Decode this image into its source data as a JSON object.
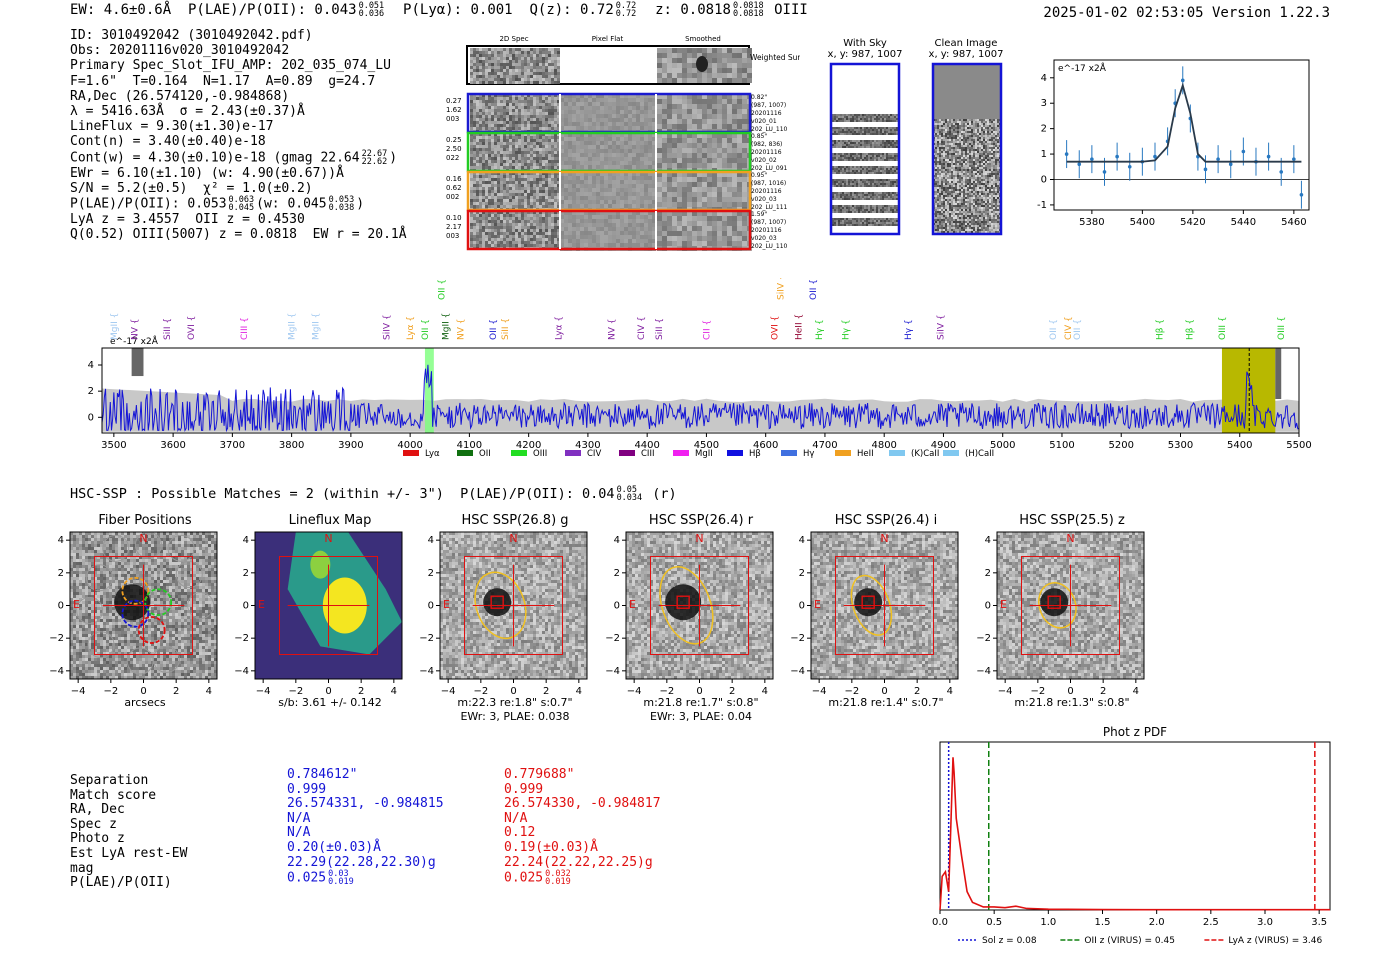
{
  "header": {
    "line": "EW: 4.6±0.6Å  P(LAE)/P(OII): 0.043",
    "pl_hi": "0.051",
    "pl_lo": "0.036",
    "plya": "  P(Lyα): 0.001  Q(z): 0.72",
    "qz_hi": "0.72",
    "qz_lo": "0.72",
    "z_label": "  z: 0.0818",
    "z_hi": "0.0818",
    "z_lo": "0.0818",
    "line_id": " OIII",
    "timestamp": "2025-01-02 02:53:05  Version 1.22.3"
  },
  "summary": {
    "id": "ID: 3010492042 (3010492042.pdf)",
    "obs": "Obs: 20201116v020_3010492042",
    "primary": "Primary Spec_Slot_IFU_AMP: 202_035_074_LU",
    "params": "F=1.6\"  T=0.164  N=1.17  A=0.89  g=24.7",
    "radec": "RA,Dec (26.574120,-0.984868)",
    "lambda": "λ = 5416.63Å  σ = 2.43(±0.37)Å",
    "lineflux": "LineFlux = 9.30(±1.30)e-17",
    "contn": "Cont(n) = 3.40(±0.40)e-18",
    "contw": "Cont(w) = 4.30(±0.10)e-18 (gmag 22.64",
    "gmag_hi": "22.67",
    "gmag_lo": "22.62",
    "ewr": "EWr = 6.10(±1.10) (w: 4.90(±0.67))Å",
    "sn": "S/N = 5.2(±0.5)  χ² = 1.0(±0.2)",
    "plae": "P(LAE)/P(OII): 0.053",
    "plae_hi": "0.063",
    "plae_lo": "0.045",
    "plae_w": "(w: 0.045",
    "plae_w_hi": "0.053",
    "plae_w_lo": "0.038",
    "lya": "LyA z = 3.4557  OII z = 0.4530",
    "q": "Q(0.52) OIII(5007) z = 0.0818  EW r = 20.1Å"
  },
  "cutouts": {
    "col_labels": [
      "2D Spec",
      "Pixel Flat",
      "Smoothed"
    ],
    "weighted": "Weighted Sum",
    "rows": [
      {
        "left": [
          "0.27",
          "1.62",
          "003"
        ],
        "right": [
          "0.82\"",
          "(987, 1007)",
          "20201116",
          "v020_01",
          "202_LU_110"
        ],
        "color": "#1a1ad0"
      },
      {
        "left": [
          "0.25",
          "2.50",
          "022"
        ],
        "right": [
          "0.85\"",
          "(982, 836)",
          "20201116",
          "v020_02",
          "202_LU_091"
        ],
        "color": "#22cc22"
      },
      {
        "left": [
          "0.16",
          "0.62",
          "002"
        ],
        "right": [
          "0.95\"",
          "(987, 1016)",
          "20201116",
          "v020_03",
          "202_LU_111"
        ],
        "color": "#f0a020"
      },
      {
        "left": [
          "0.10",
          "2.17",
          "003"
        ],
        "right": [
          "1.59\"",
          "(987, 1007)",
          "20201116",
          "v020_03",
          "202_LU_110"
        ],
        "color": "#e01010"
      }
    ],
    "with_sky": "With Sky",
    "with_sky_xy": "x, y: 987, 1007",
    "clean": "Clean Image",
    "clean_xy": "x, y: 987, 1007"
  },
  "line_labels": [
    {
      "name": "MgII",
      "w": 3500,
      "color": "#a0c8f0"
    },
    {
      "name": "NV",
      "w": 3535,
      "color": "#8020a0"
    },
    {
      "name": "SiII",
      "w": 3590,
      "color": "#8020a0"
    },
    {
      "name": "OVI",
      "w": 3630,
      "color": "#8020a0"
    },
    {
      "name": "CIII",
      "w": 3720,
      "color": "#e020e0"
    },
    {
      "name": "MgII",
      "w": 3800,
      "color": "#a0c8f0"
    },
    {
      "name": "MgII",
      "w": 3840,
      "color": "#a0c8f0"
    },
    {
      "name": "SiIV",
      "w": 3960,
      "color": "#8020a0"
    },
    {
      "name": "Lyα",
      "w": 4000,
      "color": "#f0a020"
    },
    {
      "name": "OII",
      "w": 4025,
      "color": "#22cc22"
    },
    {
      "name": "MgII",
      "w": 4060,
      "color": "#106010"
    },
    {
      "name": "NV",
      "w": 4085,
      "color": "#f0a020"
    },
    {
      "name": "OII",
      "w": 4140,
      "color": "#1a1ad0"
    },
    {
      "name": "SiII",
      "w": 4160,
      "color": "#f0a020"
    },
    {
      "name": "Lyα",
      "w": 4250,
      "color": "#8020a0"
    },
    {
      "name": "NV",
      "w": 4340,
      "color": "#8020a0"
    },
    {
      "name": "CIV",
      "w": 4390,
      "color": "#8020a0"
    },
    {
      "name": "SiII",
      "w": 4420,
      "color": "#8020a0"
    },
    {
      "name": "CII",
      "w": 4500,
      "color": "#e020e0"
    },
    {
      "name": "OVI",
      "w": 4615,
      "color": "#e01010"
    },
    {
      "name": "HeII",
      "w": 4655,
      "color": "#900030"
    },
    {
      "name": "Hγ",
      "w": 4690,
      "color": "#22cc22"
    },
    {
      "name": "Hγ",
      "w": 4735,
      "color": "#22cc22"
    },
    {
      "name": "Hγ",
      "w": 4840,
      "color": "#1a1ad0"
    },
    {
      "name": "SiIV",
      "w": 4895,
      "color": "#8020a0"
    },
    {
      "name": "OII",
      "w": 5085,
      "color": "#a0c8f0"
    },
    {
      "name": "CIV",
      "w": 5110,
      "color": "#f0a020"
    },
    {
      "name": "OII",
      "w": 5125,
      "color": "#a0c8f0"
    },
    {
      "name": "Hβ",
      "w": 5265,
      "color": "#22cc22"
    },
    {
      "name": "Hβ",
      "w": 5315,
      "color": "#22cc22"
    },
    {
      "name": "OIII",
      "w": 5370,
      "color": "#22cc22"
    },
    {
      "name": "OIII",
      "w": 5470,
      "color": "#22cc22"
    }
  ],
  "upper_labels": [
    {
      "name": "OII",
      "w": 4053,
      "color": "#22cc22"
    },
    {
      "name": "SiIV",
      "w": 4625,
      "color": "#f0a020"
    },
    {
      "name": "OII",
      "w": 4680,
      "color": "#1a1ad0"
    }
  ],
  "legend": [
    {
      "name": "Lyα",
      "color": "#e01010"
    },
    {
      "name": "OII",
      "color": "#107010"
    },
    {
      "name": "OIII",
      "color": "#22dd22"
    },
    {
      "name": "CIV",
      "color": "#8030c0"
    },
    {
      "name": "CIII",
      "color": "#800080"
    },
    {
      "name": "MgII",
      "color": "#f020f0"
    },
    {
      "name": "Hβ",
      "color": "#1010e0"
    },
    {
      "name": "Hγ",
      "color": "#4070e0"
    },
    {
      "name": "HeII",
      "color": "#f0a020"
    },
    {
      "name": "(K)CaII",
      "color": "#80c8f0"
    },
    {
      "name": "(H)CaII",
      "color": "#80c8f0"
    }
  ],
  "hsc": {
    "title": "HSC-SSP : Possible Matches = 2 (within +/- 3\")  P(LAE)/P(OII): 0.04",
    "hi": "0.05",
    "lo": "0.034",
    "tail": " (r)"
  },
  "thumbs": [
    {
      "title": "Fiber Positions",
      "cap1": "arcsecs",
      "cap2": ""
    },
    {
      "title": "Lineflux Map",
      "cap1": "s/b: 3.61 +/- 0.142",
      "cap2": ""
    },
    {
      "title": "HSC SSP(26.8) g",
      "cap1": "m:22.3  re:1.8\"  s:0.7\"",
      "cap2": "EWr: 3, PLAE: 0.038"
    },
    {
      "title": "HSC SSP(26.4) r",
      "cap1": "m:21.8  re:1.7\"  s:0.8\"",
      "cap2": "EWr: 3, PLAE: 0.04"
    },
    {
      "title": "HSC SSP(26.4) i",
      "cap1": "m:21.8  re:1.4\"  s:0.7\"",
      "cap2": ""
    },
    {
      "title": "HSC SSP(25.5) z",
      "cap1": "m:21.8  re:1.3\"  s:0.8\"",
      "cap2": ""
    }
  ],
  "compass": {
    "n": "N",
    "e": "E"
  },
  "match_table": {
    "labels": [
      "Separation",
      "Match score",
      "RA, Dec",
      "Spec z",
      "Photo z",
      "Est LyA rest-EW",
      "mag",
      "P(LAE)/P(OII)"
    ],
    "blue": [
      "0.784612\"",
      "0.999",
      "26.574331, -0.984815",
      "N/A",
      "N/A",
      "0.20(±0.03)Å",
      "22.29(22.28,22.30)g",
      "0.025"
    ],
    "blue_hi": "0.03",
    "blue_lo": "0.019",
    "red": [
      "0.779688\"",
      "0.999",
      "26.574330, -0.984817",
      "N/A",
      "0.12",
      "0.19(±0.03)Å",
      "22.24(22.22,22.25)g",
      "0.025"
    ],
    "red_hi": "0.032",
    "red_lo": "0.019"
  },
  "chart_data": [
    {
      "type": "line",
      "title": "",
      "ylabel_note": "e^-17 x2Å",
      "x": [
        5370,
        5375,
        5380,
        5385,
        5390,
        5395,
        5400,
        5405,
        5410,
        5413,
        5416,
        5419,
        5422,
        5425,
        5430,
        5435,
        5440,
        5445,
        5450,
        5455,
        5460,
        5463
      ],
      "values": [
        1.0,
        0.6,
        0.8,
        0.3,
        0.9,
        0.5,
        0.7,
        0.9,
        1.5,
        3.0,
        3.9,
        2.4,
        0.9,
        0.4,
        0.8,
        0.6,
        1.1,
        0.7,
        0.9,
        0.3,
        0.8,
        -0.6
      ],
      "model": [
        0.7,
        0.7,
        0.7,
        0.7,
        0.7,
        0.7,
        0.7,
        0.75,
        1.3,
        2.8,
        3.7,
        2.6,
        1.0,
        0.7,
        0.7,
        0.7,
        0.7,
        0.7,
        0.7,
        0.7,
        0.7,
        0.7
      ],
      "xlim": [
        5365,
        5466
      ],
      "ylim": [
        -1.2,
        4.7
      ],
      "xticks": [
        5380,
        5400,
        5420,
        5440,
        5460
      ],
      "yticks": [
        -1,
        0,
        1,
        2,
        3,
        4
      ]
    },
    {
      "type": "line",
      "title": "",
      "ylabel_note": "e^-17 x2Å",
      "xlim": [
        3480,
        5500
      ],
      "ylim": [
        -1.2,
        5.3
      ],
      "xticks": [
        3500,
        3600,
        3700,
        3800,
        3900,
        4000,
        4100,
        4200,
        4300,
        4400,
        4500,
        4600,
        4700,
        4800,
        4900,
        5000,
        5100,
        5200,
        5300,
        5400,
        5500
      ],
      "yticks": [
        0,
        2,
        4
      ],
      "highlight_band": [
        4025,
        4040
      ],
      "fit_region": [
        5370,
        5460
      ],
      "fit_line": 5416,
      "seed": 7
    },
    {
      "type": "line",
      "title": "Phot z PDF",
      "x": [
        0.0,
        0.02,
        0.05,
        0.08,
        0.1,
        0.12,
        0.13,
        0.15,
        0.18,
        0.2,
        0.25,
        0.3,
        0.4,
        0.5,
        0.6,
        0.7,
        0.8,
        1.0,
        1.5,
        2.0,
        3.0,
        3.5,
        3.6
      ],
      "values": [
        0.0,
        0.22,
        0.25,
        0.12,
        0.55,
        1.0,
        0.9,
        0.6,
        0.45,
        0.35,
        0.12,
        0.05,
        0.02,
        0.02,
        0.015,
        0.025,
        0.01,
        0.005,
        0.003,
        0.002,
        0.002,
        0.002,
        0.002
      ],
      "xlim": [
        0,
        3.6
      ],
      "ylim": [
        0,
        1.1
      ],
      "xticks": [
        0.0,
        0.5,
        1.0,
        1.5,
        2.0,
        2.5,
        3.0,
        3.5
      ],
      "vlines": [
        {
          "x": 0.08,
          "color": "#1414d6",
          "style": "dot",
          "label": "Sol z = 0.08"
        },
        {
          "x": 0.45,
          "color": "#108010",
          "style": "dash",
          "label": "OII z (VIRUS) = 0.45"
        },
        {
          "x": 3.46,
          "color": "#e01010",
          "style": "dash",
          "label": "LyA z (VIRUS) = 3.46"
        }
      ]
    }
  ]
}
